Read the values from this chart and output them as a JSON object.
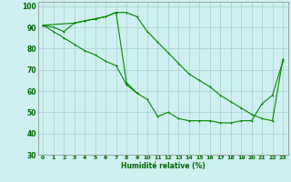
{
  "xlabel": "Humidité relative (%)",
  "bg_color": "#cff0f0",
  "grid_color": "#aad4d4",
  "line_color": "#008800",
  "xlim": [
    -0.5,
    23.5
  ],
  "ylim": [
    30,
    102
  ],
  "xticks": [
    0,
    1,
    2,
    3,
    4,
    5,
    6,
    7,
    8,
    9,
    10,
    11,
    12,
    13,
    14,
    15,
    16,
    17,
    18,
    19,
    20,
    21,
    22,
    23
  ],
  "yticks": [
    30,
    40,
    50,
    60,
    70,
    80,
    90,
    100
  ],
  "series1_x": [
    0,
    1,
    2,
    3,
    4,
    5,
    6,
    7,
    8,
    9,
    10,
    11,
    12,
    13,
    14,
    15,
    16,
    17,
    18,
    19,
    20,
    21,
    22,
    23
  ],
  "series1_y": [
    91,
    90,
    88,
    92,
    93,
    94,
    95,
    97,
    97,
    95,
    88,
    83,
    78,
    73,
    68,
    65,
    62,
    58,
    55,
    52,
    49,
    47,
    46,
    75
  ],
  "series2_x": [
    0,
    1,
    2,
    3,
    4,
    5,
    6,
    7,
    8,
    9,
    10,
    11,
    12,
    13,
    14,
    15,
    16,
    17,
    18,
    19,
    20,
    21,
    22,
    23
  ],
  "series2_y": [
    91,
    88,
    85,
    82,
    79,
    77,
    74,
    72,
    63,
    59,
    56,
    48,
    50,
    47,
    46,
    46,
    46,
    45,
    45,
    46,
    46,
    54,
    58,
    74
  ],
  "series3_x": [
    0,
    3,
    4,
    5,
    6,
    7,
    8,
    9
  ],
  "series3_y": [
    91,
    92,
    93,
    94,
    95,
    97,
    64,
    59
  ]
}
